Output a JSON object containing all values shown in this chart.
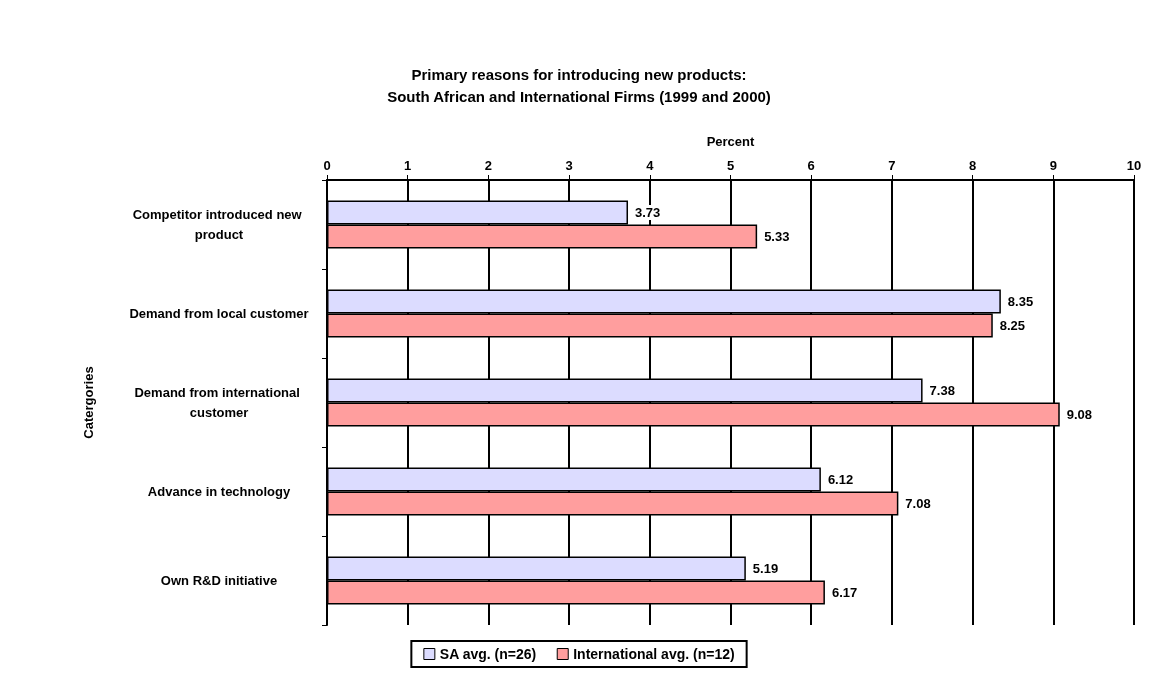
{
  "chart_data": {
    "type": "bar",
    "orientation": "horizontal",
    "title": "Primary reasons for introducing new products:\nSouth African and International Firms (1999 and 2000)",
    "xlabel": "Percent",
    "ylabel": "Catergories",
    "categories": [
      "Competitor introduced new product",
      "Demand from local customer",
      "Demand from international customer",
      "Advance in technology",
      "Own R&D initiative"
    ],
    "series": [
      {
        "name": "SA avg. (n=26)",
        "color": "#dcdcff",
        "values": [
          3.73,
          8.35,
          7.38,
          6.12,
          5.19
        ]
      },
      {
        "name": "International avg. (n=12)",
        "color": "#ff9e9e",
        "values": [
          5.33,
          8.25,
          9.08,
          7.08,
          6.17
        ]
      }
    ],
    "xlim": [
      0,
      10
    ],
    "xticks": [
      0,
      1,
      2,
      3,
      4,
      5,
      6,
      7,
      8,
      9,
      10
    ],
    "grid": "x",
    "legend": "bottom",
    "data_labels": true
  }
}
